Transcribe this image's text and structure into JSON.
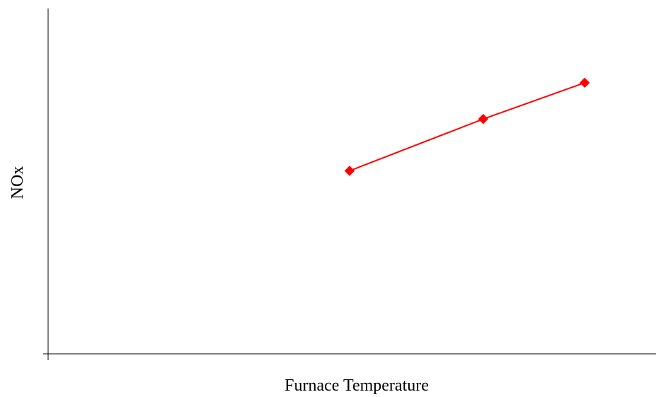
{
  "chart_data": {
    "type": "line",
    "title": "",
    "xlabel": "Furnace Temperature",
    "ylabel": "NOx",
    "xlim": [
      0,
      6
    ],
    "ylim": [
      0,
      10
    ],
    "grid": false,
    "legend": "none",
    "x": [
      3,
      4.33,
      5.34
    ],
    "series": [
      {
        "values": [
          5.3,
          6.8,
          7.85
        ],
        "color": "#ff0000",
        "marker": "diamond"
      }
    ]
  }
}
